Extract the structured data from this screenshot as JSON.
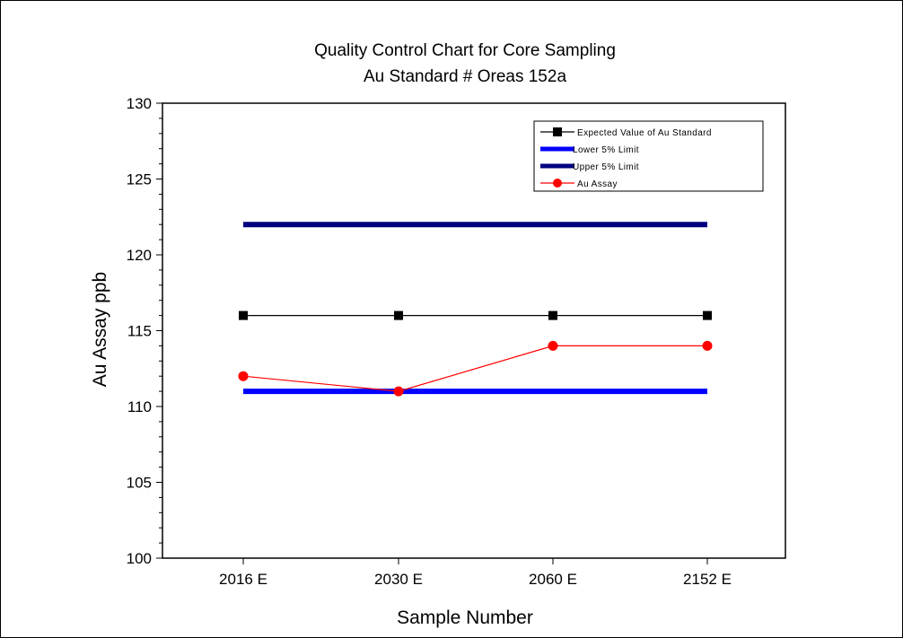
{
  "chart_data": {
    "type": "line",
    "title": "Quality Control Chart for Core Sampling",
    "subtitle": "Au Standard # Oreas 152a",
    "xlabel": "Sample Number",
    "ylabel": "Au Assay ppb",
    "categories": [
      "2016 E",
      "2030 E",
      "2060 E",
      "2152 E"
    ],
    "ylim": [
      100,
      130
    ],
    "yticks": [
      100,
      105,
      110,
      115,
      120,
      125,
      130
    ],
    "grid": false,
    "legend_position": "top-right",
    "series": [
      {
        "name": "Expected Value of Au Standard",
        "values": [
          116,
          116,
          116,
          116
        ],
        "color": "#000000",
        "marker": "square",
        "style": "thin"
      },
      {
        "name": "Lower 5% Limit",
        "values": [
          111,
          111,
          111,
          111
        ],
        "color": "#0000ff",
        "marker": "none",
        "style": "thick"
      },
      {
        "name": "Upper 5% Limit",
        "values": [
          122,
          122,
          122,
          122
        ],
        "color": "#000080",
        "marker": "none",
        "style": "thick"
      },
      {
        "name": "Au Assay",
        "values": [
          112,
          111,
          114,
          114
        ],
        "color": "#ff0000",
        "marker": "circle",
        "style": "thin"
      }
    ]
  }
}
